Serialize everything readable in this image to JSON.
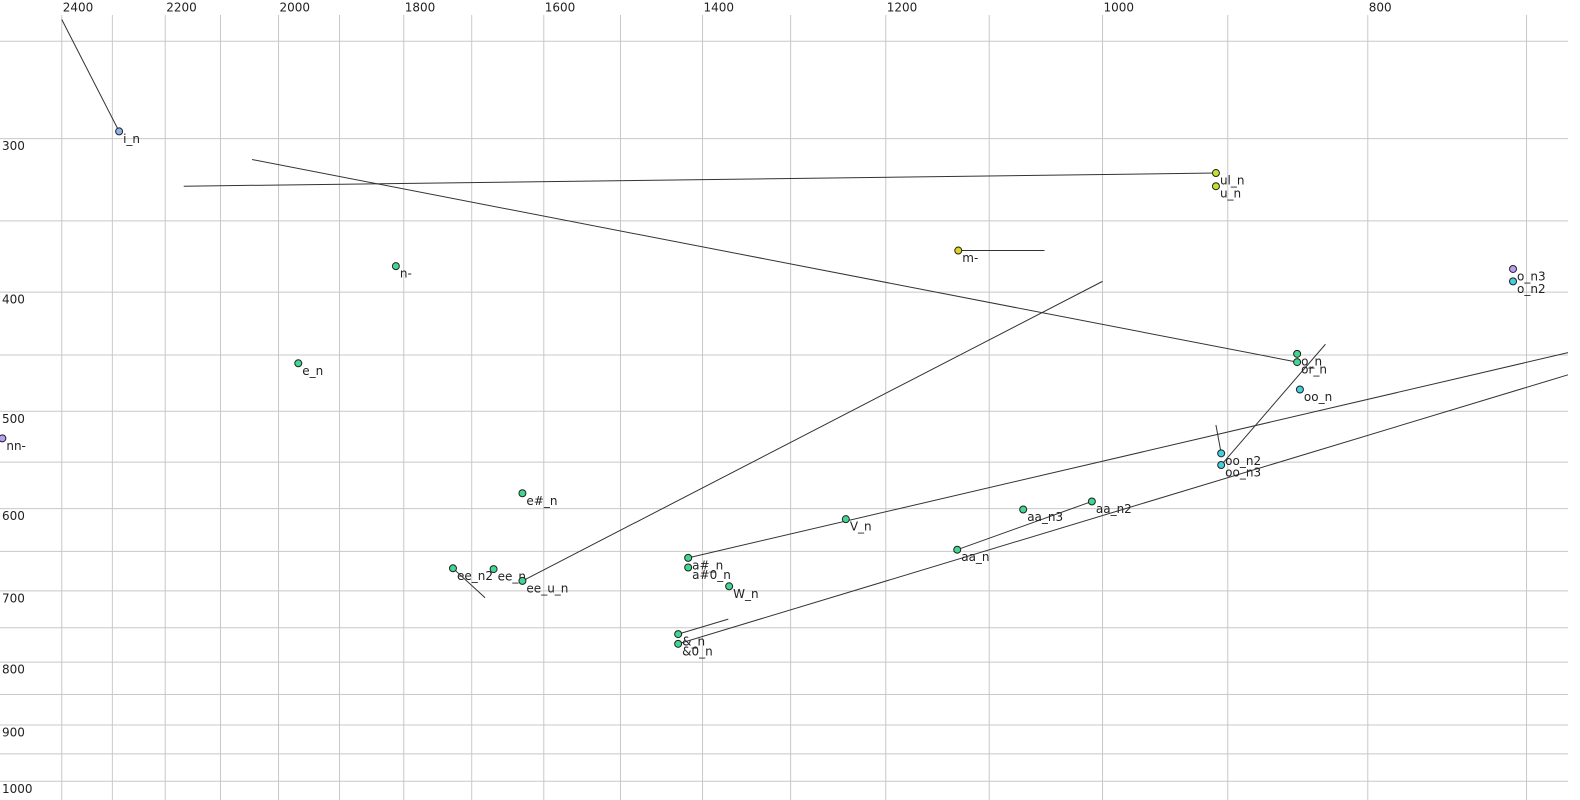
{
  "chart_data": {
    "type": "scatter",
    "xlog": true,
    "ylog": true,
    "grid": true,
    "xlim": [
      2528,
      676
    ],
    "ylim": [
      238,
      1026
    ],
    "xticks": [
      2400,
      2200,
      2000,
      1800,
      1600,
      1400,
      1200,
      1000,
      800
    ],
    "xminor": [
      2300,
      2100,
      1900,
      1700,
      1500,
      1300,
      1100,
      900,
      700
    ],
    "yticks": [
      300,
      400,
      500,
      600,
      700,
      800,
      900,
      1000
    ],
    "yminor": [
      250,
      350,
      450,
      550,
      650,
      750,
      850,
      950
    ],
    "points": [
      {
        "label": "i_n",
        "x": 2287,
        "y": 296,
        "color": "#8fb4e8",
        "to": {
          "x": 2400,
          "y": 240
        }
      },
      {
        "label": "ul_n",
        "x": 909,
        "y": 320,
        "color": "#c4e030",
        "to": {
          "x": 2166,
          "y": 328
        }
      },
      {
        "label": "u_n",
        "x": 909,
        "y": 328,
        "color": "#c4e030"
      },
      {
        "label": "m-",
        "x": 1129,
        "y": 370,
        "color": "#e0d020",
        "to": {
          "x": 1050,
          "y": 370
        }
      },
      {
        "label": "n-",
        "x": 1812,
        "y": 381,
        "color": "#40d890"
      },
      {
        "label": "o_n3",
        "x": 708,
        "y": 383,
        "color": "#b8a0f0"
      },
      {
        "label": "o_n2",
        "x": 708,
        "y": 392,
        "color": "#40d0e0"
      },
      {
        "label": "e_n",
        "x": 1967,
        "y": 457,
        "color": "#40d890"
      },
      {
        "label": "o_n",
        "x": 849,
        "y": 449,
        "color": "#40d890"
      },
      {
        "label": "or_n",
        "x": 849,
        "y": 456,
        "color": "#40d890",
        "to": {
          "x": 2045,
          "y": 312
        }
      },
      {
        "label": "oo_n",
        "x": 847,
        "y": 480,
        "color": "#40d0e0"
      },
      {
        "label": "nn-",
        "x": 2523,
        "y": 526,
        "color": "#b8a0f0"
      },
      {
        "label": "oo_n2",
        "x": 905,
        "y": 541,
        "color": "#40d0e0",
        "to": {
          "x": 909,
          "y": 513
        }
      },
      {
        "label": "oo_n3",
        "x": 905,
        "y": 553,
        "color": "#40d0e0",
        "to": {
          "x": 829,
          "y": 441
        }
      },
      {
        "label": "e#_n",
        "x": 1629,
        "y": 583,
        "color": "#40d890"
      },
      {
        "label": "V_n",
        "x": 1241,
        "y": 612,
        "color": "#40d890"
      },
      {
        "label": "aa_n3",
        "x": 1069,
        "y": 601,
        "color": "#40d890"
      },
      {
        "label": "aa_n2",
        "x": 1009,
        "y": 592,
        "color": "#40d890"
      },
      {
        "label": "aa_n",
        "x": 1130,
        "y": 648,
        "color": "#40d890",
        "to": {
          "x": 1009,
          "y": 592
        }
      },
      {
        "label": "a#0_n",
        "x": 1417,
        "y": 670,
        "color": "#40d890"
      },
      {
        "label": "a#_n",
        "x": 1417,
        "y": 658,
        "color": "#40d890",
        "to": {
          "x": 676,
          "y": 448
        }
      },
      {
        "label": "ee_n2",
        "x": 1727,
        "y": 671,
        "color": "#40d890",
        "to": {
          "x": 1681,
          "y": 709
        }
      },
      {
        "label": "ee_n",
        "x": 1669,
        "y": 672,
        "color": "#40d890"
      },
      {
        "label": "ee_u_n",
        "x": 1629,
        "y": 687,
        "color": "#40d890",
        "to": {
          "x": 1000,
          "y": 392
        }
      },
      {
        "label": "W_n",
        "x": 1369,
        "y": 694,
        "color": "#40d890"
      },
      {
        "label": "&_n",
        "x": 1429,
        "y": 759,
        "color": "#40d890",
        "to": {
          "x": 1370,
          "y": 738
        }
      },
      {
        "label": "&0_n",
        "x": 1429,
        "y": 773,
        "color": "#40d890",
        "to": {
          "x": 676,
          "y": 467
        }
      }
    ]
  }
}
